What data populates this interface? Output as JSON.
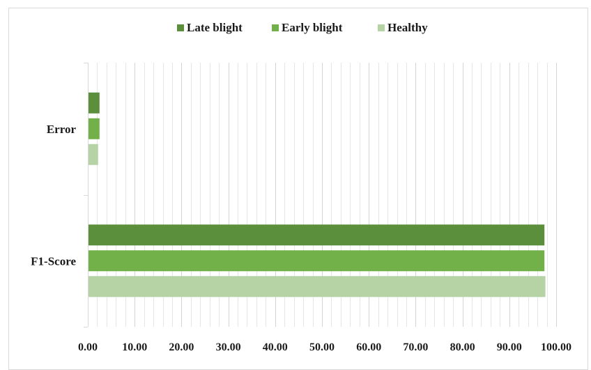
{
  "chart_data": {
    "type": "bar",
    "orientation": "horizontal",
    "categories": [
      "Error",
      "F1-Score"
    ],
    "series": [
      {
        "name": "Late blight",
        "color": "#5b8f3b",
        "values": [
          2.5,
          97.5
        ]
      },
      {
        "name": "Early blight",
        "color": "#72b04a",
        "values": [
          2.5,
          97.5
        ]
      },
      {
        "name": "Healthy",
        "color": "#b5d3a4",
        "values": [
          2.2,
          97.7
        ]
      }
    ],
    "xlim": [
      0,
      100
    ],
    "xticks": [
      "0.00",
      "10.00",
      "20.00",
      "30.00",
      "40.00",
      "50.00",
      "60.00",
      "70.00",
      "80.00",
      "90.00",
      "100.00"
    ],
    "grid": true,
    "legend_position": "top"
  }
}
